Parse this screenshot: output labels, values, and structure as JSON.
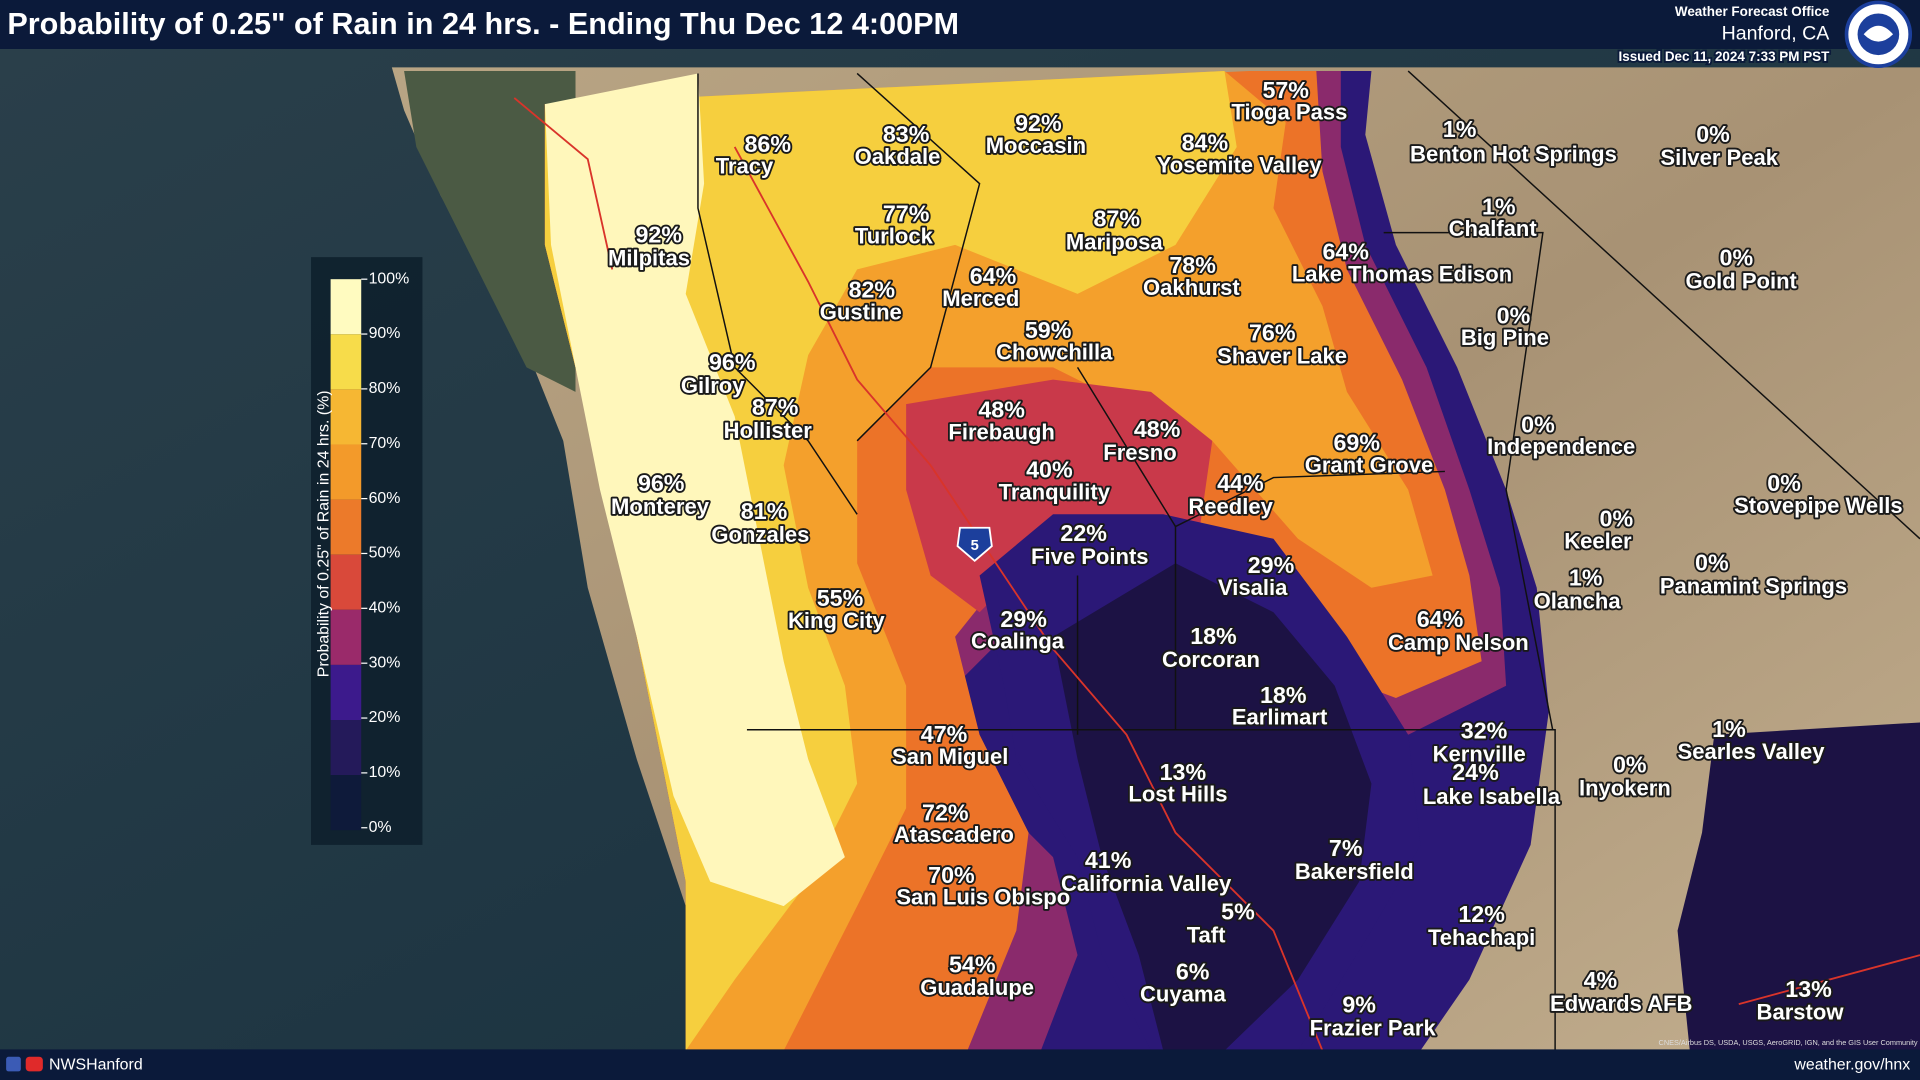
{
  "header": {
    "title": "Probability of 0.25\" of Rain in 24 hrs. - Ending Thu Dec 12 4:00PM",
    "office": "Weather Forecast Office",
    "location": "Hanford, CA",
    "issued": "Issued Dec 11, 2024 7:33 PM PST"
  },
  "legend": {
    "title": "Probability of 0.25\" of Rain in 24 hrs. (%)",
    "ticks": [
      "100%",
      "90%",
      "80%",
      "70%",
      "60%",
      "50%",
      "40%",
      "30%",
      "20%",
      "10%",
      "0%"
    ]
  },
  "highway": "5",
  "locations": [
    {
      "value": "57%",
      "name": "Tioga Pass"
    },
    {
      "value": "86%",
      "name": "Tracy"
    },
    {
      "value": "83%",
      "name": "Oakdale"
    },
    {
      "value": "92%",
      "name": "Moccasin"
    },
    {
      "value": "84%",
      "name": "Yosemite Valley"
    },
    {
      "value": "1%",
      "name": "Benton Hot Springs"
    },
    {
      "value": "0%",
      "name": "Silver Peak"
    },
    {
      "value": "92%",
      "name": "Milpitas"
    },
    {
      "value": "77%",
      "name": "Turlock"
    },
    {
      "value": "87%",
      "name": "Mariposa"
    },
    {
      "value": "1%",
      "name": "Chalfant"
    },
    {
      "value": "64%",
      "name": "Lake Thomas Edison"
    },
    {
      "value": "0%",
      "name": "Gold Point"
    },
    {
      "value": "64%",
      "name": "Merced"
    },
    {
      "value": "78%",
      "name": "Oakhurst"
    },
    {
      "value": "82%",
      "name": "Gustine"
    },
    {
      "value": "0%",
      "name": "Big Pine"
    },
    {
      "value": "59%",
      "name": "Chowchilla"
    },
    {
      "value": "76%",
      "name": "Shaver Lake"
    },
    {
      "value": "96%",
      "name": "Gilroy"
    },
    {
      "value": "87%",
      "name": "Hollister"
    },
    {
      "value": "48%",
      "name": "Firebaugh"
    },
    {
      "value": "48%",
      "name": "Fresno"
    },
    {
      "value": "0%",
      "name": "Independence"
    },
    {
      "value": "69%",
      "name": "Grant Grove"
    },
    {
      "value": "0%",
      "name": "Stovepipe Wells"
    },
    {
      "value": "40%",
      "name": "Tranquility"
    },
    {
      "value": "44%",
      "name": "Reedley"
    },
    {
      "value": "96%",
      "name": "Monterey"
    },
    {
      "value": "81%",
      "name": "Gonzales"
    },
    {
      "value": "0%",
      "name": "Keeler"
    },
    {
      "value": "22%",
      "name": "Five Points"
    },
    {
      "value": "29%",
      "name": "Visalia"
    },
    {
      "value": "0%",
      "name": "Panamint Springs"
    },
    {
      "value": "1%",
      "name": "Olancha"
    },
    {
      "value": "55%",
      "name": "King City"
    },
    {
      "value": "29%",
      "name": "Coalinga"
    },
    {
      "value": "64%",
      "name": "Camp Nelson"
    },
    {
      "value": "18%",
      "name": "Corcoran"
    },
    {
      "value": "18%",
      "name": "Earlimart"
    },
    {
      "value": "32%",
      "name": "Kernville"
    },
    {
      "value": "1%",
      "name": "Searles Valley"
    },
    {
      "value": "47%",
      "name": "San Miguel"
    },
    {
      "value": "24%",
      "name": "Lake Isabella"
    },
    {
      "value": "0%",
      "name": "Inyokern"
    },
    {
      "value": "13%",
      "name": "Lost Hills"
    },
    {
      "value": "72%",
      "name": "Atascadero"
    },
    {
      "value": "7%",
      "name": "Bakersfield"
    },
    {
      "value": "41%",
      "name": "California Valley"
    },
    {
      "value": "70%",
      "name": "San Luis Obispo"
    },
    {
      "value": "12%",
      "name": "Tehachapi"
    },
    {
      "value": "5%",
      "name": "Taft"
    },
    {
      "value": "54%",
      "name": "Guadalupe"
    },
    {
      "value": "6%",
      "name": "Cuyama"
    },
    {
      "value": "4%",
      "name": "Edwards AFB"
    },
    {
      "value": "13%",
      "name": "Barstow"
    },
    {
      "value": "9%",
      "name": "Frazier Park"
    }
  ],
  "attribution": "CNES/Airbus DS, USDA, USGS, AeroGRID, IGN, and the GIS User Community",
  "footer": {
    "social": "NWSHanford",
    "url": "weather.gov/hnx"
  }
}
